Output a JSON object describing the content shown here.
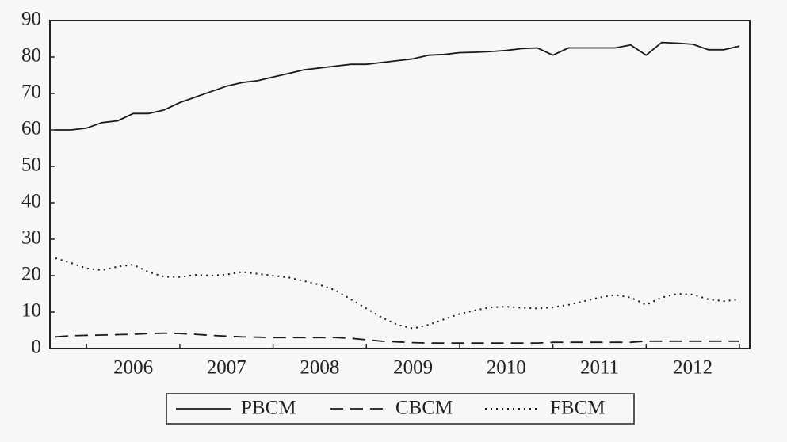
{
  "chart_data": {
    "type": "line",
    "categories": [
      null,
      null,
      null,
      null,
      null,
      "2006",
      null,
      null,
      null,
      null,
      null,
      "2007",
      null,
      null,
      null,
      null,
      null,
      "2008",
      null,
      null,
      null,
      null,
      null,
      "2009",
      null,
      null,
      null,
      null,
      null,
      "2010",
      null,
      null,
      null,
      null,
      null,
      "2011",
      null,
      null,
      null,
      null,
      null,
      "2012",
      null,
      null,
      null
    ],
    "ylim": [
      0,
      90
    ],
    "yticks": [
      0,
      10,
      20,
      30,
      40,
      50,
      60,
      70,
      80,
      90
    ],
    "legend": "bottom",
    "series": [
      {
        "name": "PBCM",
        "color": "#1a1a1a",
        "style": "solid",
        "values": [
          60,
          60,
          60.5,
          62,
          62.5,
          64.5,
          64.5,
          65.5,
          67.5,
          69,
          70.5,
          72,
          73,
          73.5,
          74.5,
          75.5,
          76.5,
          77,
          77.5,
          78,
          78,
          78.5,
          79,
          79.5,
          80.5,
          80.7,
          81.2,
          81.3,
          81.5,
          81.8,
          82.3,
          82.5,
          80.5,
          82.5,
          82.5,
          82.5,
          82.5,
          83.3,
          80.5,
          84,
          83.8,
          83.5,
          82,
          82,
          83
        ]
      },
      {
        "name": "CBCM",
        "color": "#1a1a1a",
        "style": "dashed",
        "values": [
          3.2,
          3.5,
          3.6,
          3.7,
          3.8,
          3.9,
          4.1,
          4.2,
          4.1,
          3.9,
          3.6,
          3.4,
          3.2,
          3.1,
          3.0,
          3.0,
          3.0,
          3.0,
          3.0,
          2.8,
          2.4,
          2.0,
          1.8,
          1.6,
          1.5,
          1.5,
          1.5,
          1.5,
          1.5,
          1.5,
          1.5,
          1.5,
          1.7,
          1.7,
          1.7,
          1.7,
          1.7,
          1.7,
          2.0,
          2.0,
          2.0,
          2.0,
          2.0,
          2.0,
          2.0
        ]
      },
      {
        "name": "FBCM",
        "color": "#1a1a1a",
        "style": "dotted",
        "values": [
          24.8,
          23.5,
          22,
          21.5,
          22.5,
          23,
          21,
          19.7,
          19.6,
          20.2,
          20,
          20.3,
          21,
          20.5,
          20,
          19.5,
          18.5,
          17.5,
          16,
          13.5,
          11,
          8.5,
          6.5,
          5.5,
          6.5,
          8,
          9.5,
          10.5,
          11.3,
          11.5,
          11.2,
          11,
          11.3,
          12,
          13,
          14,
          14.7,
          14,
          12,
          14,
          15,
          14.8,
          13.5,
          13,
          13.5
        ]
      }
    ]
  }
}
